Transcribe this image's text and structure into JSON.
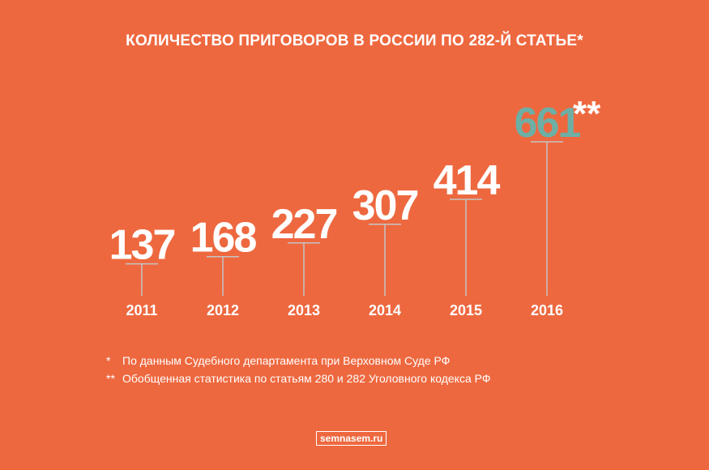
{
  "chart_data": {
    "type": "bar",
    "title": "КОЛИЧЕСТВО ПРИГОВОРОВ В РОССИИ ПО 282-Й СТАТЬЕ*",
    "categories": [
      "2011",
      "2012",
      "2013",
      "2014",
      "2015",
      "2016"
    ],
    "values": [
      137,
      168,
      227,
      307,
      414,
      661
    ],
    "value_labels": [
      "137",
      "168",
      "227",
      "307",
      "414",
      "661"
    ],
    "highlight_index": 5,
    "highlight_suffix": "**",
    "xlabel": "",
    "ylabel": "",
    "grid": false,
    "legend": "none",
    "colors": {
      "background": "#EE683F",
      "text": "#FFFFFF",
      "stem": "#C4C4C4",
      "highlight": "#6DAFA5"
    }
  },
  "footnotes": [
    {
      "mark": "*",
      "text": "По данным Судебного департамента при Верховном Суде РФ"
    },
    {
      "mark": "**",
      "text": "Обобщенная статистика по статьям 280 и 282 Уголовного кодекса РФ"
    }
  ],
  "brand": "semnasem.ru"
}
